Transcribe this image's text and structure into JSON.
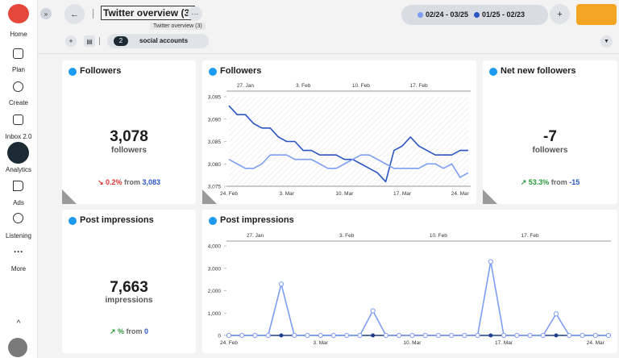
{
  "sidebar": {
    "items": [
      "Home",
      "Plan",
      "Create",
      "Inbox 2.0",
      "Analytics",
      "Ads",
      "Listening",
      "More"
    ]
  },
  "header": {
    "title": "Twitter overview (3)",
    "tooltip": "Twitter overview (3)",
    "range_current": "02/24 - 03/25",
    "range_previous": "01/25 - 02/23",
    "accounts_count": "2",
    "accounts_label": "social accounts"
  },
  "cards": [
    {
      "title": "Followers",
      "value": "3,078",
      "unit": "followers",
      "change": "0.2%",
      "from": "from",
      "from_value": "3,083"
    },
    {
      "title": "Net new followers",
      "value": "-7",
      "unit": "followers",
      "change": "53.3%",
      "from": "from",
      "from_value": "-15"
    },
    {
      "title": "Post impressions",
      "value": "7,663",
      "unit": "impressions",
      "change": "%",
      "from": "from",
      "from_value": "0"
    }
  ],
  "charts": [
    {
      "type": "line",
      "title": "Followers",
      "markers": false,
      "categories": [
        "24. Feb",
        null,
        null,
        null,
        null,
        null,
        null,
        "3. Mar",
        null,
        null,
        null,
        null,
        null,
        null,
        "10. Mar",
        null,
        null,
        null,
        null,
        null,
        null,
        "17. Mar",
        null,
        null,
        null,
        null,
        null,
        null,
        "24. Mar",
        null
      ],
      "top_categories": [
        null,
        null,
        "27. Jan",
        null,
        null,
        null,
        null,
        null,
        null,
        "3. Feb",
        null,
        null,
        null,
        null,
        null,
        null,
        "10. Feb",
        null,
        null,
        null,
        null,
        null,
        null,
        "17. Feb",
        null,
        null,
        null,
        null,
        null,
        null
      ],
      "ylim": [
        3075,
        3095
      ],
      "yticks": [
        {
          "value": 3075,
          "label": "3,075"
        },
        {
          "value": 3080,
          "label": "3,080"
        },
        {
          "value": 3085,
          "label": "3,085"
        },
        {
          "value": 3090,
          "label": "3,090"
        },
        {
          "value": 3095,
          "label": "3,095"
        }
      ],
      "series": [
        {
          "color": "#7d9ef2",
          "values": [
            3081,
            3080,
            3079,
            3079,
            3080,
            3082,
            3082,
            3082,
            3081,
            3081,
            3081,
            3080,
            3079,
            3079,
            3080,
            3081,
            3082,
            3082,
            3081,
            3080,
            3079,
            3079,
            3079,
            3079,
            3080,
            3080,
            3079,
            3080,
            3077,
            3078
          ]
        },
        {
          "color": "#2b55c4",
          "values": [
            3093,
            3091,
            3091,
            3089,
            3088,
            3088,
            3086,
            3085,
            3085,
            3083,
            3083,
            3082,
            3082,
            3082,
            3081,
            3081,
            3080,
            3079,
            3078,
            3076,
            3083,
            3084,
            3086,
            3084,
            3083,
            3082,
            3082,
            3082,
            3083,
            3083
          ]
        }
      ]
    },
    {
      "type": "line",
      "title": "Post impressions",
      "markers": true,
      "categories": [
        "24. Feb",
        null,
        null,
        null,
        null,
        null,
        null,
        "3. Mar",
        null,
        null,
        null,
        null,
        null,
        null,
        "10. Mar",
        null,
        null,
        null,
        null,
        null,
        null,
        "17. Mar",
        null,
        null,
        null,
        null,
        null,
        null,
        "24. Mar",
        null
      ],
      "top_categories": [
        null,
        null,
        "27. Jan",
        null,
        null,
        null,
        null,
        null,
        null,
        "3. Feb",
        null,
        null,
        null,
        null,
        null,
        null,
        "10. Feb",
        null,
        null,
        null,
        null,
        null,
        null,
        "17. Feb",
        null,
        null,
        null,
        null,
        null,
        null
      ],
      "ylim": [
        0,
        4000
      ],
      "yticks": [
        0,
        {
          "value": 1000,
          "label": "1,000"
        },
        {
          "value": 2000,
          "label": "2,000"
        },
        {
          "value": 3000,
          "label": "3,000"
        },
        {
          "value": 4000,
          "label": "4,000"
        }
      ],
      "series": [
        {
          "color": "#7d9ef2",
          "values": [
            0,
            0,
            0,
            0,
            2300,
            0,
            0,
            0,
            0,
            0,
            0,
            1100,
            0,
            0,
            0,
            0,
            0,
            0,
            0,
            0,
            3300,
            0,
            0,
            0,
            0,
            963,
            0,
            0,
            0,
            0
          ]
        },
        {
          "color": "#1f3f8f",
          "values": [
            0,
            0,
            0,
            0,
            0,
            0,
            0,
            0,
            0,
            0,
            0,
            0,
            0,
            0,
            0,
            0,
            0,
            0,
            0,
            0,
            0,
            0,
            0,
            0,
            0,
            0,
            0,
            0,
            0,
            0
          ]
        }
      ]
    }
  ]
}
